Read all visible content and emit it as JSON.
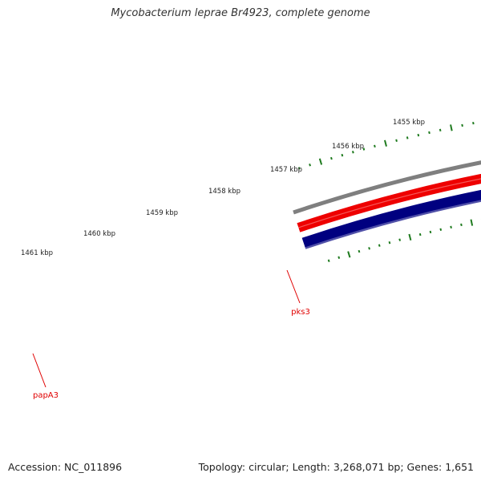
{
  "title": "Mycobacterium leprae Br4923, complete genome",
  "footer": {
    "accession": "Accession: NC_011896",
    "stats": "Topology: circular; Length: 3,268,071 bp; Genes: 1,651"
  },
  "scale_ticks": [
    {
      "label": "1455 kbp"
    },
    {
      "label": "1456 kbp"
    },
    {
      "label": "1457 kbp"
    },
    {
      "label": "1458 kbp"
    },
    {
      "label": "1459 kbp"
    },
    {
      "label": "1460 kbp"
    },
    {
      "label": "1461 kbp"
    }
  ],
  "genes": [
    {
      "name": "pks3"
    },
    {
      "name": "papA3"
    }
  ],
  "colors": {
    "backbone": "#7f7f7f",
    "forward_strand": "#ee0000",
    "reverse_strand": "#000080",
    "ticks": "#1e7a1e",
    "gene_label": "#e00000"
  }
}
